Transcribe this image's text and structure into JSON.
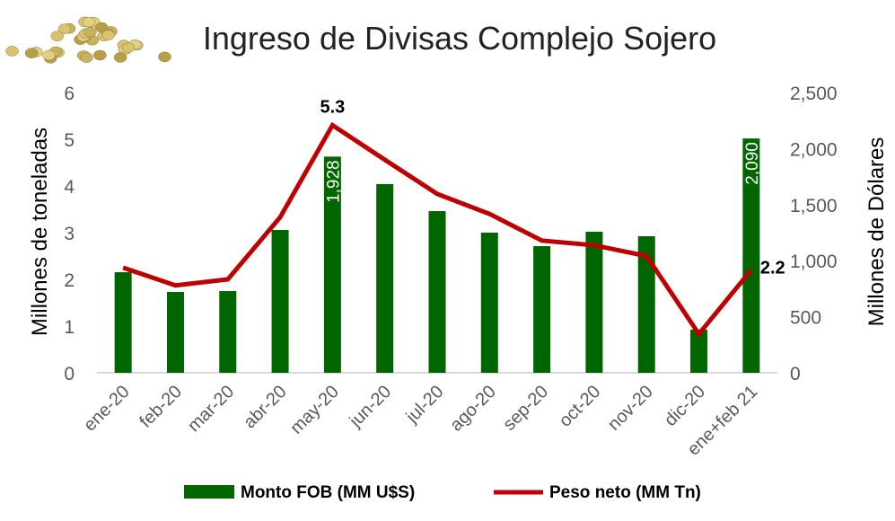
{
  "chart_data": {
    "type": "bar+line",
    "title": "Ingreso de Divisas Complejo Sojero",
    "categories": [
      "ene-20",
      "feb-20",
      "mar-20",
      "abr-20",
      "may-20",
      "jun-20",
      "jul-20",
      "ago-20",
      "sep-20",
      "oct-20",
      "nov-20",
      "dic-20",
      "ene+feb 21"
    ],
    "series": [
      {
        "name": "Monto FOB (MM U$S)",
        "type": "bar",
        "axis": "right",
        "color": "#006600",
        "values": [
          897,
          721,
          729,
          1274,
          1928,
          1683,
          1442,
          1250,
          1130,
          1258,
          1218,
          385,
          2090
        ]
      },
      {
        "name": "Peso neto (MM Tn)",
        "type": "line",
        "axis": "left",
        "color": "#C00000",
        "values": [
          2.25,
          1.87,
          2.0,
          3.33,
          5.3,
          4.56,
          3.83,
          3.4,
          2.83,
          2.73,
          2.5,
          0.83,
          2.2
        ]
      }
    ],
    "bar_labels": [
      {
        "index": 4,
        "text": "1,928"
      },
      {
        "index": 12,
        "text": "2,090"
      }
    ],
    "line_labels": [
      {
        "index": 4,
        "text": "5.3"
      },
      {
        "index": 12,
        "text": "2.2"
      }
    ],
    "ylabel_left": "Millones de toneladas",
    "ylabel_right": "Millones de Dólares",
    "ylim_left": [
      0,
      6
    ],
    "ylim_right": [
      0,
      2500
    ],
    "yticks_left": [
      "0",
      "1",
      "2",
      "3",
      "4",
      "5",
      "6"
    ],
    "yticks_right": [
      "0",
      "500",
      "1,000",
      "1,500",
      "2,000",
      "2,500"
    ],
    "grid": false,
    "legend_position": "bottom"
  }
}
